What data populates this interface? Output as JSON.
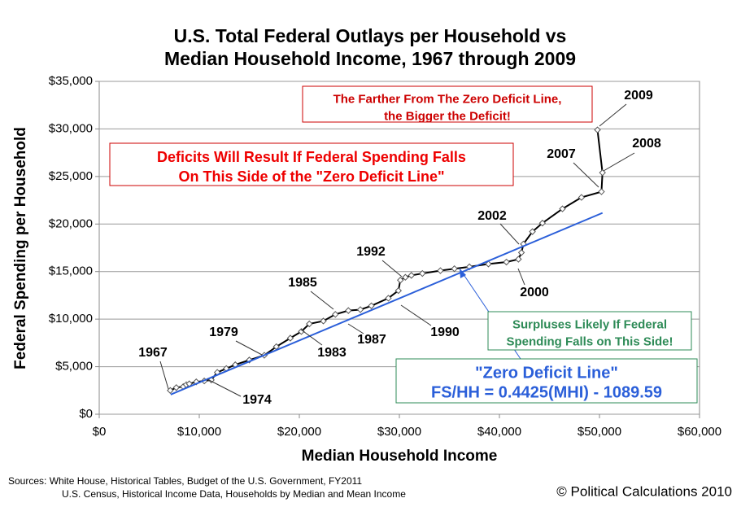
{
  "chart_data": {
    "type": "line",
    "title": [
      "U.S. Total Federal Outlays per Household vs",
      "Median Household Income, 1967 through 2009"
    ],
    "x_label": "Median Household Income",
    "y_label": "Federal Spending per Household",
    "xlim": [
      0,
      60000
    ],
    "ylim": [
      0,
      35000
    ],
    "xticks": [
      {
        "value": 0,
        "label": "$0"
      },
      {
        "value": 10000,
        "label": "$10,000"
      },
      {
        "value": 20000,
        "label": "$20,000"
      },
      {
        "value": 30000,
        "label": "$30,000"
      },
      {
        "value": 40000,
        "label": "$40,000"
      },
      {
        "value": 50000,
        "label": "$50,000"
      },
      {
        "value": 60000,
        "label": "$60,000"
      }
    ],
    "yticks": [
      {
        "value": 0,
        "label": "$0"
      },
      {
        "value": 5000,
        "label": "$5,000"
      },
      {
        "value": 10000,
        "label": "$10,000"
      },
      {
        "value": 15000,
        "label": "$15,000"
      },
      {
        "value": 20000,
        "label": "$20,000"
      },
      {
        "value": 25000,
        "label": "$25,000"
      },
      {
        "value": 30000,
        "label": "$30,000"
      },
      {
        "value": 35000,
        "label": "$35,000"
      }
    ],
    "grid": true,
    "series": [
      {
        "color": "#000000",
        "x": [
          7100,
          7700,
          8400,
          8700,
          9000,
          9700,
          10500,
          11200,
          11800,
          12700,
          13600,
          15000,
          16500,
          17700,
          19100,
          20200,
          21000,
          22400,
          23600,
          24900,
          26100,
          27200,
          28900,
          29900,
          30100,
          30600,
          31200,
          32300,
          34100,
          35500,
          37000,
          38900,
          40700,
          41900,
          42200,
          42400,
          43300,
          44300,
          46300,
          48200,
          50200,
          50300,
          49800
        ],
        "values": [
          2500,
          2800,
          2900,
          3100,
          3200,
          3400,
          3500,
          3600,
          4400,
          4800,
          5200,
          5700,
          6200,
          7100,
          8000,
          8700,
          9500,
          9800,
          10500,
          10900,
          11000,
          11400,
          12200,
          13000,
          14100,
          14400,
          14600,
          14800,
          15100,
          15300,
          15500,
          15800,
          16000,
          16300,
          17000,
          17900,
          19200,
          20100,
          21600,
          22800,
          23400,
          25400,
          29900
        ]
      },
      {
        "color": "#2b5fd9",
        "x": [
          7143,
          50303
        ],
        "values": [
          2071,
          21169
        ]
      }
    ],
    "year_labels": [
      "1967",
      "1974",
      "1979",
      "1983",
      "1985",
      "1987",
      "1990",
      "1992",
      "2000",
      "2002",
      "2007",
      "2008",
      "2009"
    ],
    "callouts": [
      [
        "The Farther From The Zero Deficit Line,",
        "the Bigger the Deficit!"
      ],
      [
        "Deficits Will Result If Federal Spending Falls",
        "On This Side of the \"Zero Deficit Line\""
      ],
      [
        "Surpluses Likely If Federal",
        "Spending Falls on This Side!"
      ],
      [
        "\"Zero Deficit Line\"",
        "FS/HH = 0.4425(MHI) - 1089.59"
      ]
    ],
    "sources": [
      "Sources: White House, Historical Tables, Budget of the U.S. Government, FY2011",
      "U.S. Census, Historical Income Data, Households by Median and Mean Income"
    ],
    "credit": "© Political Calculations 2010"
  }
}
